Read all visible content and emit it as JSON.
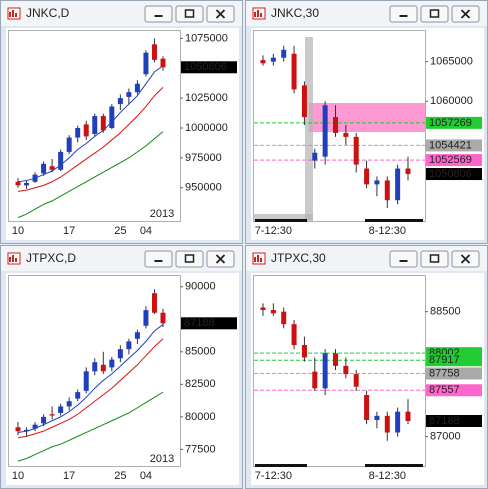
{
  "chart_data": [
    {
      "type": "candlestick",
      "title": "JNKC,D",
      "year_label": "2013",
      "categories": [
        "10",
        null,
        null,
        null,
        null,
        null,
        "17",
        null,
        null,
        null,
        null,
        null,
        "25",
        null,
        null,
        "04",
        null,
        null
      ],
      "open": [
        955000,
        952000,
        955000,
        962000,
        968000,
        965000,
        980000,
        992000,
        1003000,
        995000,
        1010000,
        1000000,
        1020000,
        1026000,
        1030000,
        1045000,
        1070000,
        1058000
      ],
      "high": [
        958000,
        956000,
        963000,
        972000,
        974000,
        982000,
        994000,
        1002000,
        1006000,
        1012000,
        1012000,
        1020000,
        1028000,
        1033000,
        1040000,
        1065000,
        1075000,
        1060000
      ],
      "low": [
        950000,
        949000,
        954000,
        960000,
        963000,
        964000,
        978000,
        988000,
        990000,
        993000,
        996000,
        999000,
        1015000,
        1020000,
        1028000,
        1043000,
        1055000,
        1048000
      ],
      "close": [
        952000,
        954000,
        961000,
        970000,
        965000,
        980000,
        992000,
        1000000,
        993000,
        1010000,
        998000,
        1018000,
        1025000,
        1030000,
        1037000,
        1063000,
        1057000,
        1050806
      ],
      "up_color": "#1f3fbf",
      "down_color": "#cc1111",
      "lines": [
        {
          "color": "#1f3fbf",
          "values": [
            955000,
            956000,
            958000,
            961000,
            964000,
            969000,
            975000,
            982000,
            987000,
            993000,
            998000,
            1005000,
            1013000,
            1020000,
            1027000,
            1037000,
            1047000,
            1052000
          ]
        },
        {
          "color": "#dd1111",
          "values": [
            947000,
            948000,
            950000,
            952000,
            955000,
            959000,
            964000,
            969000,
            974000,
            979000,
            984000,
            990000,
            996000,
            1003000,
            1010000,
            1018000,
            1027000,
            1034000
          ]
        },
        {
          "color": "#118811",
          "values": [
            925000,
            928000,
            932000,
            936000,
            939000,
            943000,
            947000,
            951000,
            955000,
            959000,
            963000,
            967000,
            971000,
            975000,
            980000,
            985000,
            991000,
            997000
          ]
        }
      ],
      "ylim": [
        923000,
        1082000
      ],
      "yticks": [
        950000,
        975000,
        1000000,
        1025000,
        1075000
      ],
      "price_labels": [
        {
          "value": 1050806,
          "color": "#000000"
        }
      ]
    },
    {
      "type": "candlestick",
      "title": "JNKC,30",
      "categories": [
        null,
        "7-12:30",
        null,
        null,
        null,
        null,
        null,
        null,
        null,
        null,
        null,
        null,
        "8-12:30",
        null,
        null
      ],
      "open": [
        1065200,
        1065000,
        1065500,
        1066000,
        1062000,
        1052500,
        1053000,
        1058000,
        1056000,
        1055500,
        1051500,
        1049500,
        1050000,
        1047500,
        1051500
      ],
      "high": [
        1065800,
        1066000,
        1067000,
        1067000,
        1062500,
        1054000,
        1060000,
        1059500,
        1057000,
        1056000,
        1052500,
        1050500,
        1050500,
        1052000,
        1053000
      ],
      "low": [
        1064500,
        1064500,
        1065000,
        1061000,
        1057000,
        1051500,
        1052000,
        1055500,
        1054500,
        1051000,
        1049000,
        1048000,
        1046500,
        1047000,
        1050000
      ],
      "close": [
        1064800,
        1065500,
        1066500,
        1061500,
        1058000,
        1053500,
        1059500,
        1056000,
        1055500,
        1052000,
        1049500,
        1050000,
        1047500,
        1051500,
        1050806
      ],
      "up_color": "#1f3fbf",
      "down_color": "#cc1111",
      "ylim": [
        1045000,
        1069000
      ],
      "yticks": [
        1060000,
        1065000
      ],
      "price_labels": [
        {
          "value": 1057269,
          "color": "#22cc33"
        },
        {
          "value": 1054421,
          "color": "#aaaaaa"
        },
        {
          "value": 1052569,
          "color": "#ff66cc"
        },
        {
          "value": 1050806,
          "color": "#000000"
        }
      ]
    },
    {
      "type": "candlestick",
      "title": "JTPXC,D",
      "year_label": "2013",
      "categories": [
        "10",
        null,
        null,
        null,
        null,
        null,
        "17",
        null,
        null,
        null,
        null,
        null,
        "25",
        null,
        null,
        "04",
        null,
        null
      ],
      "open": [
        79200,
        78900,
        79100,
        79500,
        80200,
        80300,
        80800,
        81400,
        82000,
        83500,
        84000,
        83800,
        84500,
        85200,
        86000,
        87000,
        89500,
        88000
      ],
      "high": [
        79600,
        79200,
        79600,
        80200,
        80800,
        81000,
        81500,
        82100,
        83800,
        84500,
        85000,
        84600,
        85500,
        86000,
        86700,
        88500,
        89800,
        88300
      ],
      "low": [
        78600,
        78500,
        78900,
        79300,
        79800,
        80100,
        80500,
        81200,
        81800,
        83200,
        83300,
        83500,
        84200,
        84800,
        85600,
        86800,
        87900,
        86900
      ],
      "close": [
        78900,
        79000,
        79400,
        80000,
        80100,
        80800,
        81200,
        81900,
        83500,
        84200,
        83500,
        84400,
        85200,
        85800,
        86500,
        88200,
        88000,
        87188
      ],
      "up_color": "#1f3fbf",
      "down_color": "#cc1111",
      "lines": [
        {
          "color": "#1f3fbf",
          "values": [
            78800,
            78900,
            79100,
            79400,
            79700,
            80000,
            80400,
            80900,
            81500,
            82200,
            82800,
            83300,
            83900,
            84500,
            85100,
            85800,
            86600,
            87100
          ]
        },
        {
          "color": "#dd1111",
          "values": [
            78400,
            78500,
            78700,
            78900,
            79200,
            79500,
            79800,
            80200,
            80700,
            81200,
            81700,
            82200,
            82800,
            83400,
            84000,
            84700,
            85400,
            86000
          ]
        },
        {
          "color": "#118811",
          "values": [
            76600,
            76800,
            77100,
            77400,
            77700,
            77900,
            78200,
            78500,
            78800,
            79100,
            79400,
            79700,
            80000,
            80300,
            80700,
            81100,
            81500,
            81900
          ]
        }
      ],
      "ylim": [
        76300,
        90900
      ],
      "yticks": [
        77500,
        80000,
        82500,
        85000,
        90000
      ],
      "price_labels": [
        {
          "value": 87188,
          "color": "#000000"
        }
      ]
    },
    {
      "type": "candlestick",
      "title": "JTPXC,30",
      "categories": [
        null,
        "7-12:30",
        null,
        null,
        null,
        null,
        null,
        null,
        null,
        null,
        null,
        null,
        "8-12:30",
        null,
        null
      ],
      "open": [
        88550,
        88520,
        88500,
        88350,
        88100,
        87780,
        87580,
        88000,
        87850,
        87750,
        87500,
        87200,
        87250,
        87050,
        87300
      ],
      "high": [
        88600,
        88600,
        88550,
        88400,
        88200,
        87950,
        88050,
        88050,
        87950,
        87800,
        87550,
        87300,
        87300,
        87350,
        87450
      ],
      "low": [
        88450,
        88450,
        88300,
        88050,
        87900,
        87550,
        87500,
        87800,
        87700,
        87550,
        87150,
        87100,
        86950,
        87000,
        87150
      ],
      "close": [
        88520,
        88480,
        88350,
        88100,
        87950,
        87580,
        88000,
        87850,
        87750,
        87600,
        87200,
        87250,
        87050,
        87300,
        87188
      ],
      "up_color": "#1f3fbf",
      "down_color": "#cc1111",
      "ylim": [
        86660,
        88940
      ],
      "yticks": [
        87000,
        88500
      ],
      "price_labels": [
        {
          "value": 88002,
          "color": "#22cc33"
        },
        {
          "value": 87917,
          "color": "#22cc33"
        },
        {
          "value": 87758,
          "color": "#aaaaaa"
        },
        {
          "value": 87557,
          "color": "#ff66cc"
        },
        {
          "value": 87188,
          "color": "#000000"
        }
      ]
    }
  ]
}
